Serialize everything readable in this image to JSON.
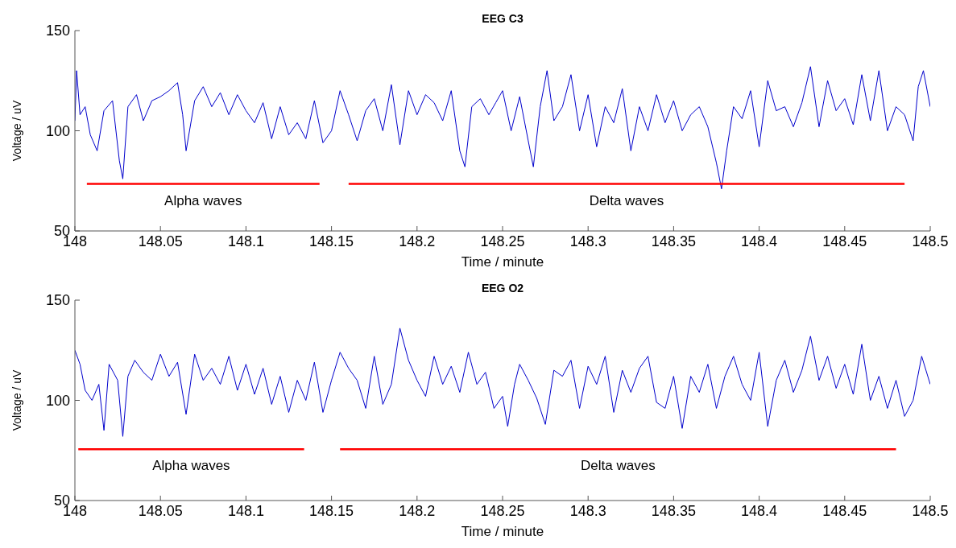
{
  "chart_data": [
    {
      "type": "line",
      "title": "EEG C3",
      "xlabel": "Time / minute",
      "ylabel": "Voltage / uV",
      "xlim": [
        148,
        148.5
      ],
      "xticks": [
        148,
        148.05,
        148.1,
        148.15,
        148.2,
        148.25,
        148.3,
        148.35,
        148.4,
        148.45,
        148.5
      ],
      "ylim": [
        50,
        150
      ],
      "yticks": [
        50,
        100,
        150
      ],
      "annotations": [
        "Alpha waves",
        "Delta waves"
      ],
      "series": [
        {
          "color": "#0000cc",
          "x": [
            148,
            148.001,
            148.003,
            148.006,
            148.009,
            148.013,
            148.017,
            148.022,
            148.026,
            148.028,
            148.031,
            148.036,
            148.04,
            148.045,
            148.05,
            148.055,
            148.06,
            148.063,
            148.065,
            148.07,
            148.075,
            148.08,
            148.085,
            148.09,
            148.095,
            148.1,
            148.105,
            148.11,
            148.115,
            148.12,
            148.125,
            148.13,
            148.135,
            148.14,
            148.145,
            148.15,
            148.155,
            148.16,
            148.165,
            148.17,
            148.175,
            148.18,
            148.185,
            148.19,
            148.195,
            148.2,
            148.205,
            148.21,
            148.215,
            148.22,
            148.225,
            148.228,
            148.232,
            148.237,
            148.242,
            148.246,
            148.25,
            148.255,
            148.26,
            148.265,
            148.268,
            148.272,
            148.276,
            148.28,
            148.285,
            148.29,
            148.295,
            148.3,
            148.305,
            148.31,
            148.315,
            148.32,
            148.325,
            148.33,
            148.335,
            148.34,
            148.345,
            148.35,
            148.355,
            148.36,
            148.365,
            148.37,
            148.375,
            148.378,
            148.381,
            148.385,
            148.39,
            148.395,
            148.4,
            148.405,
            148.41,
            148.415,
            148.42,
            148.425,
            148.43,
            148.435,
            148.44,
            148.445,
            148.45,
            148.455,
            148.46,
            148.465,
            148.47,
            148.475,
            148.48,
            148.485,
            148.49,
            148.493,
            148.496,
            148.5
          ],
          "values": [
            105,
            130,
            108,
            112,
            98,
            90,
            110,
            115,
            85,
            76,
            112,
            118,
            105,
            115,
            117,
            120,
            124,
            108,
            90,
            115,
            122,
            112,
            119,
            108,
            118,
            110,
            104,
            114,
            96,
            112,
            98,
            104,
            96,
            115,
            94,
            100,
            120,
            108,
            95,
            110,
            116,
            100,
            123,
            93,
            120,
            108,
            118,
            114,
            105,
            120,
            90,
            82,
            112,
            116,
            108,
            114,
            120,
            100,
            117,
            95,
            82,
            112,
            130,
            105,
            112,
            128,
            100,
            118,
            92,
            112,
            104,
            121,
            90,
            112,
            100,
            118,
            104,
            115,
            100,
            108,
            112,
            102,
            84,
            71,
            90,
            112,
            106,
            120,
            92,
            125,
            110,
            112,
            102,
            114,
            132,
            102,
            125,
            110,
            116,
            103,
            128,
            105,
            130,
            100,
            112,
            108,
            95,
            122,
            130,
            112
          ]
        },
        {
          "color": "#ff0000",
          "x": [
            148.007,
            148.143
          ],
          "values": [
            73.5,
            73.5
          ]
        },
        {
          "color": "#ff0000",
          "x": [
            148.16,
            148.485
          ],
          "values": [
            73.5,
            73.5
          ]
        }
      ]
    },
    {
      "type": "line",
      "title": "EEG O2",
      "xlabel": "Time / minute",
      "ylabel": "Voltage / uV",
      "xlim": [
        148,
        148.5
      ],
      "xticks": [
        148,
        148.05,
        148.1,
        148.15,
        148.2,
        148.25,
        148.3,
        148.35,
        148.4,
        148.45,
        148.5
      ],
      "ylim": [
        50,
        150
      ],
      "yticks": [
        50,
        100,
        150
      ],
      "annotations": [
        "Alpha waves",
        "Delta waves"
      ],
      "series": [
        {
          "color": "#0000cc",
          "x": [
            148,
            148.003,
            148.006,
            148.01,
            148.014,
            148.017,
            148.02,
            148.025,
            148.028,
            148.031,
            148.035,
            148.04,
            148.045,
            148.05,
            148.055,
            148.06,
            148.065,
            148.07,
            148.075,
            148.08,
            148.085,
            148.09,
            148.095,
            148.1,
            148.105,
            148.11,
            148.115,
            148.12,
            148.125,
            148.13,
            148.135,
            148.14,
            148.145,
            148.15,
            148.155,
            148.16,
            148.165,
            148.17,
            148.175,
            148.18,
            148.185,
            148.19,
            148.195,
            148.2,
            148.205,
            148.21,
            148.215,
            148.22,
            148.225,
            148.23,
            148.235,
            148.24,
            148.245,
            148.25,
            148.253,
            148.257,
            148.26,
            148.265,
            148.27,
            148.275,
            148.28,
            148.285,
            148.29,
            148.295,
            148.3,
            148.305,
            148.31,
            148.315,
            148.32,
            148.325,
            148.33,
            148.335,
            148.34,
            148.345,
            148.35,
            148.355,
            148.36,
            148.365,
            148.37,
            148.375,
            148.38,
            148.385,
            148.39,
            148.395,
            148.4,
            148.405,
            148.41,
            148.415,
            148.42,
            148.425,
            148.43,
            148.435,
            148.44,
            148.445,
            148.45,
            148.455,
            148.46,
            148.465,
            148.47,
            148.475,
            148.48,
            148.485,
            148.49,
            148.495,
            148.5
          ],
          "values": [
            125,
            118,
            105,
            100,
            108,
            85,
            118,
            110,
            82,
            112,
            120,
            114,
            110,
            123,
            112,
            119,
            93,
            123,
            110,
            116,
            108,
            122,
            105,
            118,
            103,
            116,
            98,
            112,
            94,
            110,
            100,
            119,
            94,
            110,
            124,
            116,
            110,
            96,
            122,
            98,
            108,
            136,
            120,
            110,
            102,
            122,
            108,
            117,
            104,
            124,
            108,
            114,
            96,
            102,
            87,
            108,
            118,
            110,
            101,
            88,
            115,
            112,
            120,
            96,
            117,
            108,
            122,
            94,
            115,
            104,
            116,
            122,
            99,
            96,
            112,
            86,
            112,
            104,
            118,
            96,
            112,
            122,
            108,
            100,
            124,
            87,
            110,
            120,
            104,
            115,
            132,
            110,
            122,
            106,
            118,
            103,
            128,
            100,
            112,
            96,
            110,
            92,
            100,
            122,
            108
          ]
        },
        {
          "color": "#ff0000",
          "x": [
            148.002,
            148.134
          ],
          "values": [
            75.6,
            75.6
          ]
        },
        {
          "color": "#ff0000",
          "x": [
            148.155,
            148.48
          ],
          "values": [
            75.6,
            75.6
          ]
        }
      ]
    }
  ]
}
